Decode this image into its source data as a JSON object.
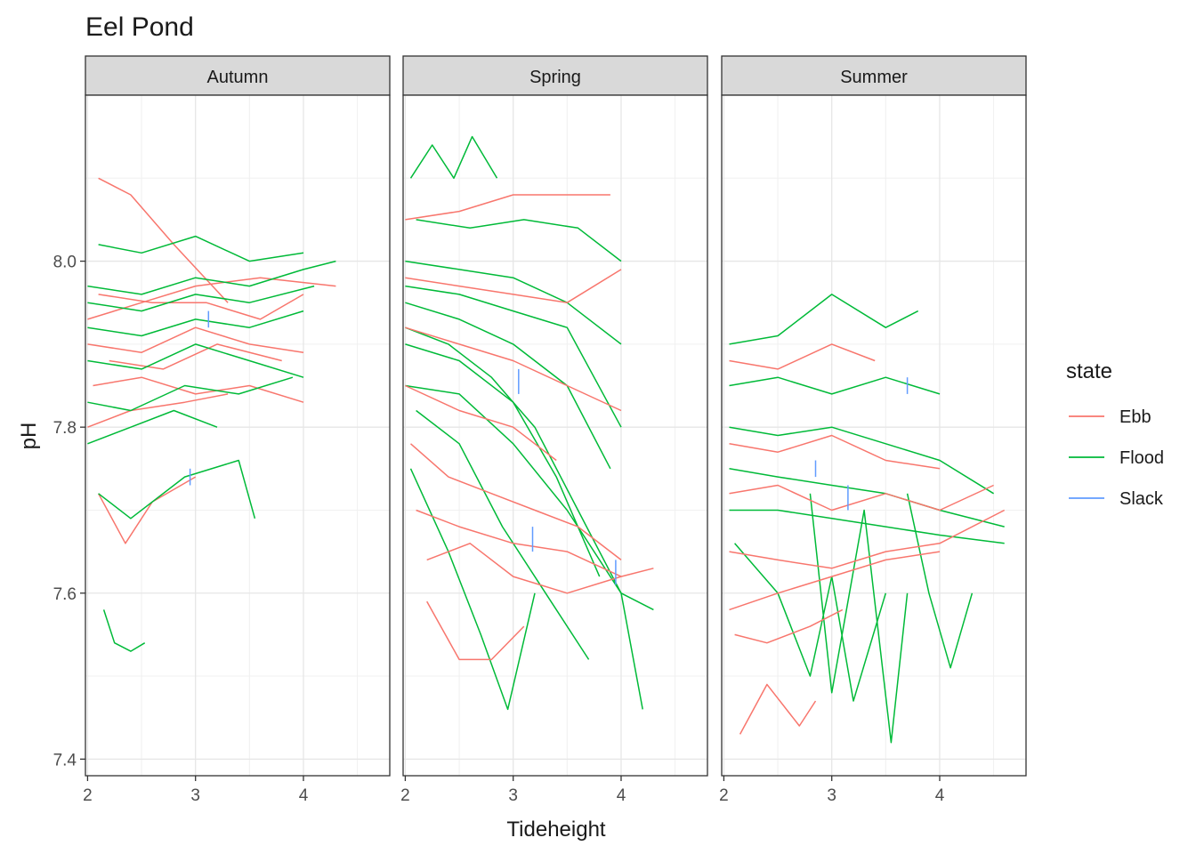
{
  "chart_data": {
    "type": "line",
    "title": "Eel Pond",
    "xlabel": "Tideheight",
    "ylabel": "pH",
    "x_ticks": [
      2,
      3,
      4
    ],
    "y_ticks": [
      7.4,
      7.6,
      7.8,
      8.0
    ],
    "y_tick_labels": [
      "7.4",
      "7.6",
      "7.8",
      "8.0"
    ],
    "ylim": [
      7.38,
      8.2
    ],
    "grid": true,
    "legend": {
      "title": "state",
      "placement": "right",
      "entries": [
        {
          "name": "Ebb",
          "color": "#F8766D"
        },
        {
          "name": "Flood",
          "color": "#00BA38"
        },
        {
          "name": "Slack",
          "color": "#619CFF"
        }
      ]
    },
    "facets": [
      {
        "label": "Autumn",
        "xlim": [
          1.98,
          4.8
        ],
        "series": [
          {
            "name": "Ebb",
            "x": [
              2.1,
              2.4,
              2.8,
              3.3
            ],
            "y": [
              8.1,
              8.08,
              8.02,
              7.95
            ]
          },
          {
            "name": "Ebb",
            "x": [
              2.1,
              2.6,
              3.1,
              3.6,
              4.0
            ],
            "y": [
              7.96,
              7.95,
              7.95,
              7.93,
              7.96
            ]
          },
          {
            "name": "Ebb",
            "x": [
              2.0,
              2.5,
              3.0,
              3.5,
              4.0
            ],
            "y": [
              7.9,
              7.89,
              7.92,
              7.9,
              7.89
            ]
          },
          {
            "name": "Ebb",
            "x": [
              2.05,
              2.5,
              3.0,
              3.5,
              4.0
            ],
            "y": [
              7.85,
              7.86,
              7.84,
              7.85,
              7.83
            ]
          },
          {
            "name": "Ebb",
            "x": [
              2.0,
              2.4,
              2.9,
              3.3
            ],
            "y": [
              7.8,
              7.82,
              7.83,
              7.84
            ]
          },
          {
            "name": "Ebb",
            "x": [
              2.1,
              2.35,
              2.6,
              3.0
            ],
            "y": [
              7.72,
              7.66,
              7.71,
              7.74
            ]
          },
          {
            "name": "Ebb",
            "x": [
              2.0,
              2.5,
              3.0,
              3.6,
              4.3
            ],
            "y": [
              7.93,
              7.95,
              7.97,
              7.98,
              7.97
            ]
          },
          {
            "name": "Ebb",
            "x": [
              2.2,
              2.7,
              3.2,
              3.8
            ],
            "y": [
              7.88,
              7.87,
              7.9,
              7.88
            ]
          },
          {
            "name": "Flood",
            "x": [
              2.1,
              2.5,
              3.0,
              3.5,
              4.0
            ],
            "y": [
              8.02,
              8.01,
              8.03,
              8.0,
              8.01
            ]
          },
          {
            "name": "Flood",
            "x": [
              2.0,
              2.5,
              3.0,
              3.5,
              4.0,
              4.3
            ],
            "y": [
              7.97,
              7.96,
              7.98,
              7.97,
              7.99,
              8.0
            ]
          },
          {
            "name": "Flood",
            "x": [
              2.0,
              2.5,
              3.0,
              3.5,
              4.0
            ],
            "y": [
              7.92,
              7.91,
              7.93,
              7.92,
              7.94
            ]
          },
          {
            "name": "Flood",
            "x": [
              2.0,
              2.5,
              3.0,
              3.5,
              4.0
            ],
            "y": [
              7.88,
              7.87,
              7.9,
              7.88,
              7.86
            ]
          },
          {
            "name": "Flood",
            "x": [
              2.0,
              2.4,
              2.9,
              3.4,
              3.9
            ],
            "y": [
              7.83,
              7.82,
              7.85,
              7.84,
              7.86
            ]
          },
          {
            "name": "Flood",
            "x": [
              2.0,
              2.4,
              2.8,
              3.2
            ],
            "y": [
              7.78,
              7.8,
              7.82,
              7.8
            ]
          },
          {
            "name": "Flood",
            "x": [
              2.1,
              2.4,
              2.9,
              3.4,
              3.55
            ],
            "y": [
              7.72,
              7.69,
              7.74,
              7.76,
              7.69
            ]
          },
          {
            "name": "Flood",
            "x": [
              2.15,
              2.25,
              2.4,
              2.53
            ],
            "y": [
              7.58,
              7.54,
              7.53,
              7.54
            ]
          },
          {
            "name": "Flood",
            "x": [
              2.0,
              2.5,
              3.0,
              3.5,
              4.1
            ],
            "y": [
              7.95,
              7.94,
              7.96,
              7.95,
              7.97
            ]
          },
          {
            "name": "Slack",
            "x": [
              2.95,
              2.95
            ],
            "y": [
              7.73,
              7.75
            ]
          },
          {
            "name": "Slack",
            "x": [
              3.12,
              3.12
            ],
            "y": [
              7.92,
              7.94
            ]
          }
        ]
      },
      {
        "label": "Spring",
        "xlim": [
          1.98,
          4.8
        ],
        "series": [
          {
            "name": "Flood",
            "x": [
              2.05,
              2.25,
              2.45,
              2.62,
              2.85
            ],
            "y": [
              8.1,
              8.14,
              8.1,
              8.15,
              8.1
            ]
          },
          {
            "name": "Flood",
            "x": [
              2.1,
              2.6,
              3.1,
              3.6,
              4.0
            ],
            "y": [
              8.05,
              8.04,
              8.05,
              8.04,
              8.0
            ]
          },
          {
            "name": "Flood",
            "x": [
              2.0,
              2.5,
              3.0,
              3.5,
              4.0
            ],
            "y": [
              8.0,
              7.99,
              7.98,
              7.95,
              7.9
            ]
          },
          {
            "name": "Flood",
            "x": [
              2.0,
              2.5,
              3.0,
              3.5,
              3.9
            ],
            "y": [
              7.95,
              7.93,
              7.9,
              7.85,
              7.75
            ]
          },
          {
            "name": "Flood",
            "x": [
              2.0,
              2.5,
              3.0,
              3.4,
              3.8
            ],
            "y": [
              7.9,
              7.88,
              7.83,
              7.74,
              7.62
            ]
          },
          {
            "name": "Flood",
            "x": [
              2.0,
              2.5,
              3.0,
              3.5,
              4.0,
              4.2
            ],
            "y": [
              7.85,
              7.84,
              7.78,
              7.7,
              7.6,
              7.46
            ]
          },
          {
            "name": "Flood",
            "x": [
              2.0,
              2.4,
              2.8,
              3.2,
              3.6,
              4.0,
              4.3
            ],
            "y": [
              7.92,
              7.9,
              7.86,
              7.8,
              7.7,
              7.6,
              7.58
            ]
          },
          {
            "name": "Flood",
            "x": [
              2.1,
              2.5,
              2.9,
              3.3,
              3.7
            ],
            "y": [
              7.82,
              7.78,
              7.68,
              7.6,
              7.52
            ]
          },
          {
            "name": "Flood",
            "x": [
              2.05,
              2.4,
              2.7,
              2.95,
              3.2
            ],
            "y": [
              7.75,
              7.65,
              7.55,
              7.46,
              7.6
            ]
          },
          {
            "name": "Flood",
            "x": [
              2.0,
              2.5,
              3.0,
              3.5,
              4.0
            ],
            "y": [
              7.97,
              7.96,
              7.94,
              7.92,
              7.8
            ]
          },
          {
            "name": "Ebb",
            "x": [
              2.0,
              2.5,
              3.0,
              3.5,
              3.9
            ],
            "y": [
              8.05,
              8.06,
              8.08,
              8.08,
              8.08
            ]
          },
          {
            "name": "Ebb",
            "x": [
              2.0,
              2.5,
              3.0,
              3.5,
              4.0
            ],
            "y": [
              7.98,
              7.97,
              7.96,
              7.95,
              7.99
            ]
          },
          {
            "name": "Ebb",
            "x": [
              2.0,
              2.5,
              3.0,
              3.4
            ],
            "y": [
              7.85,
              7.82,
              7.8,
              7.76
            ]
          },
          {
            "name": "Ebb",
            "x": [
              2.05,
              2.4,
              2.8,
              3.2,
              3.6,
              4.0
            ],
            "y": [
              7.78,
              7.74,
              7.72,
              7.7,
              7.68,
              7.64
            ]
          },
          {
            "name": "Ebb",
            "x": [
              2.1,
              2.5,
              3.0,
              3.5,
              4.0,
              4.3
            ],
            "y": [
              7.7,
              7.68,
              7.66,
              7.65,
              7.62,
              7.63
            ]
          },
          {
            "name": "Ebb",
            "x": [
              2.2,
              2.6,
              3.0,
              3.5,
              4.0
            ],
            "y": [
              7.64,
              7.66,
              7.62,
              7.6,
              7.62
            ]
          },
          {
            "name": "Ebb",
            "x": [
              2.2,
              2.5,
              2.8,
              3.1
            ],
            "y": [
              7.59,
              7.52,
              7.52,
              7.56
            ]
          },
          {
            "name": "Ebb",
            "x": [
              2.0,
              2.5,
              3.0,
              3.5,
              4.0
            ],
            "y": [
              7.92,
              7.9,
              7.88,
              7.85,
              7.82
            ]
          },
          {
            "name": "Slack",
            "x": [
              3.05,
              3.05
            ],
            "y": [
              7.84,
              7.87
            ]
          },
          {
            "name": "Slack",
            "x": [
              3.18,
              3.18
            ],
            "y": [
              7.65,
              7.68
            ]
          },
          {
            "name": "Slack",
            "x": [
              3.95,
              3.95
            ],
            "y": [
              7.61,
              7.64
            ]
          }
        ]
      },
      {
        "label": "Summer",
        "xlim": [
          1.98,
          4.8
        ],
        "series": [
          {
            "name": "Flood",
            "x": [
              2.05,
              2.5,
              3.0,
              3.5,
              3.8
            ],
            "y": [
              7.9,
              7.91,
              7.96,
              7.92,
              7.94
            ]
          },
          {
            "name": "Flood",
            "x": [
              2.05,
              2.5,
              3.0,
              3.5,
              4.0
            ],
            "y": [
              7.85,
              7.86,
              7.84,
              7.86,
              7.84
            ]
          },
          {
            "name": "Flood",
            "x": [
              2.05,
              2.5,
              3.0,
              3.5,
              4.0,
              4.5
            ],
            "y": [
              7.8,
              7.79,
              7.8,
              7.78,
              7.76,
              7.72
            ]
          },
          {
            "name": "Flood",
            "x": [
              2.05,
              2.5,
              3.0,
              3.5,
              4.0,
              4.6
            ],
            "y": [
              7.75,
              7.74,
              7.73,
              7.72,
              7.7,
              7.68
            ]
          },
          {
            "name": "Flood",
            "x": [
              2.05,
              2.5,
              3.0,
              3.5,
              4.0,
              4.6
            ],
            "y": [
              7.7,
              7.7,
              7.69,
              7.68,
              7.67,
              7.66
            ]
          },
          {
            "name": "Flood",
            "x": [
              2.1,
              2.5,
              2.8,
              3.0,
              3.2,
              3.5
            ],
            "y": [
              7.66,
              7.6,
              7.5,
              7.62,
              7.47,
              7.6
            ]
          },
          {
            "name": "Flood",
            "x": [
              2.8,
              3.0,
              3.3,
              3.55,
              3.7
            ],
            "y": [
              7.72,
              7.48,
              7.7,
              7.42,
              7.6
            ]
          },
          {
            "name": "Flood",
            "x": [
              3.7,
              3.9,
              4.1,
              4.3
            ],
            "y": [
              7.72,
              7.6,
              7.51,
              7.6
            ]
          },
          {
            "name": "Ebb",
            "x": [
              2.05,
              2.5,
              3.0,
              3.4
            ],
            "y": [
              7.88,
              7.87,
              7.9,
              7.88
            ]
          },
          {
            "name": "Ebb",
            "x": [
              2.05,
              2.5,
              3.0,
              3.5,
              4.0
            ],
            "y": [
              7.78,
              7.77,
              7.79,
              7.76,
              7.75
            ]
          },
          {
            "name": "Ebb",
            "x": [
              2.05,
              2.5,
              3.0,
              3.5,
              4.0,
              4.5
            ],
            "y": [
              7.72,
              7.73,
              7.7,
              7.72,
              7.7,
              7.73
            ]
          },
          {
            "name": "Ebb",
            "x": [
              2.05,
              2.5,
              3.0,
              3.5,
              4.0,
              4.6
            ],
            "y": [
              7.65,
              7.64,
              7.63,
              7.65,
              7.66,
              7.7
            ]
          },
          {
            "name": "Ebb",
            "x": [
              2.05,
              2.5,
              3.0,
              3.5,
              4.0
            ],
            "y": [
              7.58,
              7.6,
              7.62,
              7.64,
              7.65
            ]
          },
          {
            "name": "Ebb",
            "x": [
              2.15,
              2.4,
              2.7,
              2.85
            ],
            "y": [
              7.43,
              7.49,
              7.44,
              7.47
            ]
          },
          {
            "name": "Ebb",
            "x": [
              2.1,
              2.4,
              2.8,
              3.1
            ],
            "y": [
              7.55,
              7.54,
              7.56,
              7.58
            ]
          },
          {
            "name": "Slack",
            "x": [
              3.15,
              3.15
            ],
            "y": [
              7.7,
              7.73
            ]
          },
          {
            "name": "Slack",
            "x": [
              2.85,
              2.85
            ],
            "y": [
              7.74,
              7.76
            ]
          },
          {
            "name": "Slack",
            "x": [
              3.7,
              3.7
            ],
            "y": [
              7.84,
              7.86
            ]
          }
        ]
      }
    ]
  }
}
